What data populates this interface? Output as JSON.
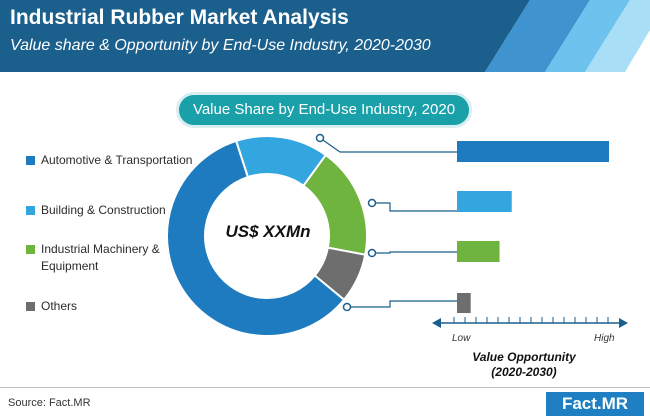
{
  "header": {
    "title": "Industrial Rubber Market Analysis",
    "subtitle": "Value share & Opportunity by End-Use Industry, 2020-2030"
  },
  "colors": {
    "header_dark": "#1b5f8c",
    "automotive": "#1f7bbf",
    "building": "#33a6e0",
    "industrial": "#6fb43f",
    "others": "#6e6e6e",
    "pill": "#1aa0a8"
  },
  "chart_data": [
    {
      "type": "pie",
      "title": "Value Share by End-Use Industry, 2020",
      "center_label": "US$ XXMn",
      "categories": [
        "Automotive & Transportation",
        "Building & Construction",
        "Industrial Machinery & Equipment",
        "Others"
      ],
      "values": [
        59,
        15,
        18,
        8
      ],
      "legend_placement": "left"
    },
    {
      "type": "bar",
      "orientation": "horizontal",
      "categories": [
        "Automotive & Transportation",
        "Building & Construction",
        "Industrial Machinery & Equipment",
        "Others"
      ],
      "values": [
        100,
        36,
        28,
        9
      ],
      "xlabel": "Value Opportunity\n(2020-2030)",
      "x_tick_labels": [
        "Low",
        "High"
      ],
      "xlim": [
        0,
        100
      ]
    }
  ],
  "footer": {
    "source": "Source: Fact.MR",
    "logo": "Fact.MR"
  }
}
